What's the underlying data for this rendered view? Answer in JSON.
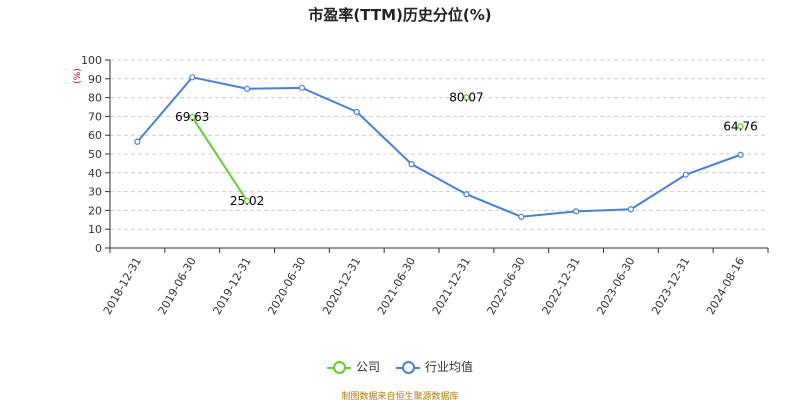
{
  "chart_data": {
    "type": "line",
    "title": "市盈率(TTM)历史分位(%)",
    "ylabel": "(%)",
    "ylim": [
      0,
      100
    ],
    "ytick_step": 10,
    "grid": true,
    "legend_position": "bottom",
    "categories": [
      "2018-12-31",
      "2019-06-30",
      "2019-12-31",
      "2020-06-30",
      "2020-12-31",
      "2021-06-30",
      "2021-12-31",
      "2022-06-30",
      "2022-12-31",
      "2023-06-30",
      "2023-12-31",
      "2024-08-16"
    ],
    "series": [
      {
        "name": "公司",
        "color": "#66cc33",
        "values": [
          null,
          69.63,
          25.02,
          null,
          null,
          null,
          80.07,
          null,
          null,
          null,
          null,
          64.76
        ],
        "labels": [
          null,
          "69.63",
          "25.02",
          null,
          null,
          null,
          "80.07",
          null,
          null,
          null,
          null,
          "64.76"
        ]
      },
      {
        "name": "行业均值",
        "color": "#4a7fd6",
        "values": [
          56.5,
          90.8,
          84.7,
          85.2,
          72.4,
          44.6,
          28.6,
          16.6,
          19.5,
          20.6,
          39.0,
          49.6
        ]
      }
    ]
  },
  "source_note": "制图数据来自恒生聚源数据库"
}
